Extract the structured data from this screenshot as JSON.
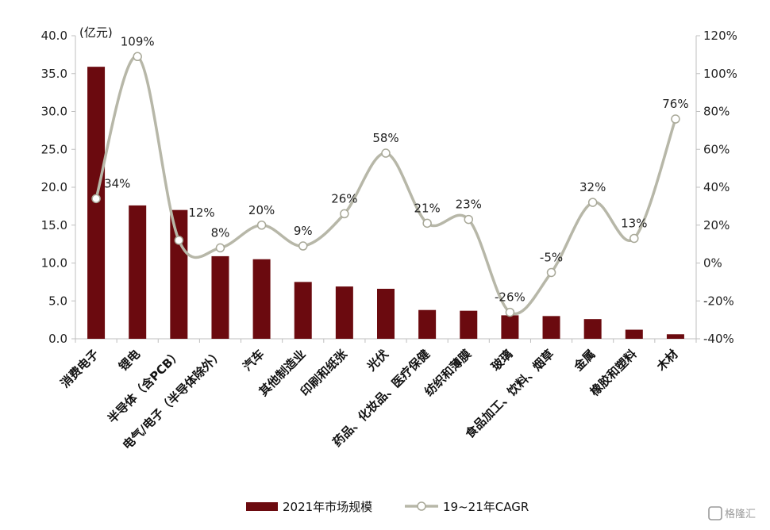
{
  "chart_data": {
    "type": "bar",
    "categories": [
      "消费电子",
      "锂电",
      "半导体（含PCB）",
      "电气/电子（半导体除外）",
      "汽车",
      "其他制造业",
      "印刷和纸张",
      "光伏",
      "药品、化妆品、医疗保健",
      "纺织和薄膜",
      "玻璃",
      "食品加工、饮料、烟草",
      "金属",
      "橡胶和塑料",
      "木材"
    ],
    "unit_label": "(亿元)",
    "series": [
      {
        "name": "2021年市场规模",
        "type": "bar",
        "axis": "left",
        "color": "#6b0a0f",
        "values": [
          35.9,
          17.6,
          17.0,
          10.9,
          10.5,
          7.5,
          6.9,
          6.6,
          3.8,
          3.7,
          3.1,
          3.0,
          2.6,
          1.2,
          0.6
        ]
      },
      {
        "name": "19~21年CAGR",
        "type": "line",
        "axis": "right",
        "color": "#b7b7a8",
        "values": [
          34,
          109,
          12,
          8,
          20,
          9,
          26,
          58,
          21,
          23,
          -26,
          -5,
          32,
          13,
          76
        ],
        "labels": [
          "34%",
          "109%",
          "12%",
          "8%",
          "20%",
          "9%",
          "26%",
          "58%",
          "21%",
          "23%",
          "-26%",
          "-5%",
          "32%",
          "13%",
          "76%"
        ]
      }
    ],
    "y_left": {
      "min": 0,
      "max": 40,
      "ticks": [
        "0.0",
        "5.0",
        "10.0",
        "15.0",
        "20.0",
        "25.0",
        "30.0",
        "35.0",
        "40.0"
      ]
    },
    "y_right": {
      "min": -40,
      "max": 120,
      "ticks": [
        "-40%",
        "-20%",
        "0%",
        "20%",
        "40%",
        "60%",
        "80%",
        "100%",
        "120%"
      ]
    },
    "legend_position": "bottom"
  },
  "watermark": "格隆汇"
}
